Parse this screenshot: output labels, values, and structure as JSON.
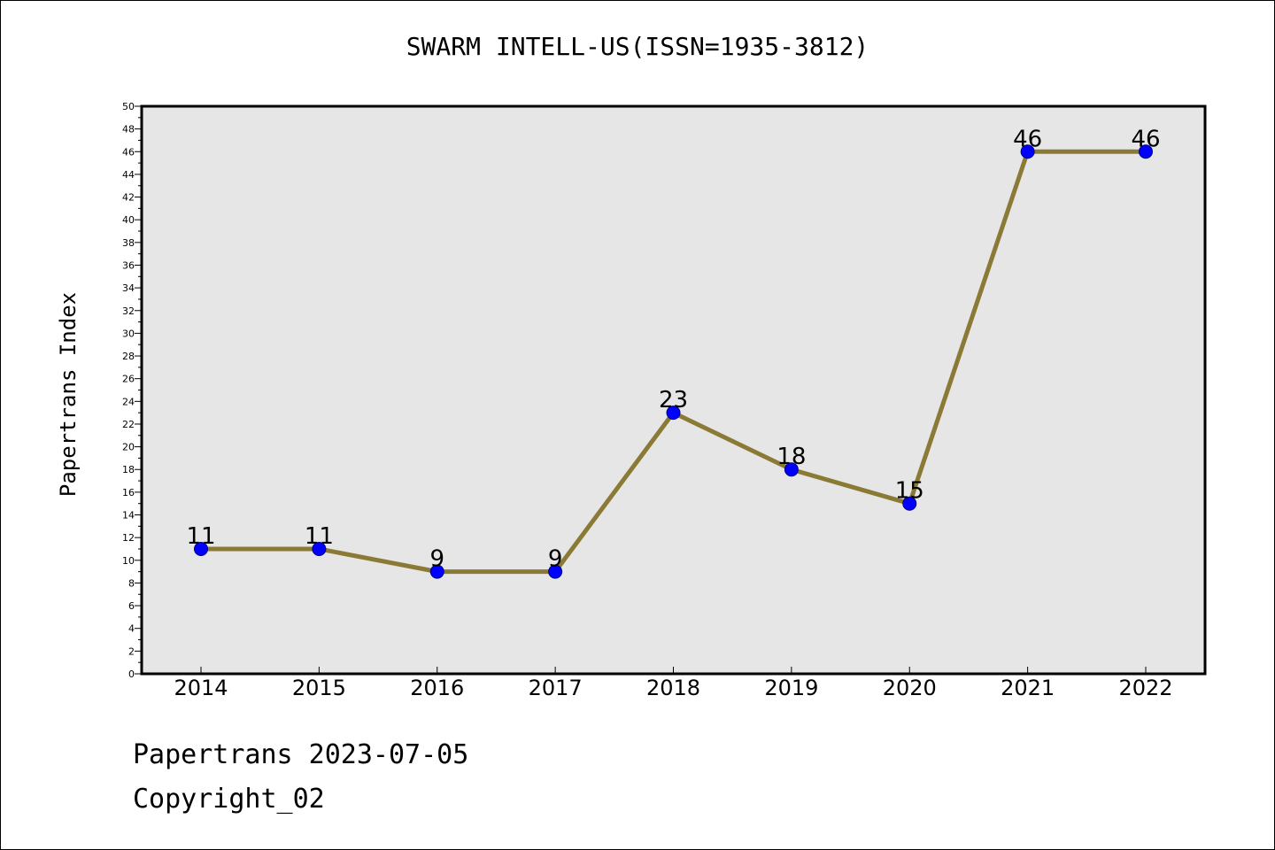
{
  "title": "SWARM INTELL-US(ISSN=1935-3812)",
  "footer": {
    "date_line": "Papertrans 2023-07-05",
    "copyright_line": "Copyright_02"
  },
  "colors": {
    "plot_background": "#e6e6e6",
    "line": "#8b7a35",
    "marker_fill": "#0000ff",
    "marker_edge": "#000080"
  },
  "chart_data": {
    "type": "line",
    "title": "SWARM INTELL-US(ISSN=1935-3812)",
    "xlabel": "",
    "ylabel": "Papertrans Index",
    "x": [
      "2014",
      "2015",
      "2016",
      "2017",
      "2018",
      "2019",
      "2020",
      "2021",
      "2022"
    ],
    "series": [
      {
        "values": [
          11,
          11,
          9,
          9,
          23,
          18,
          15,
          46,
          46
        ]
      }
    ],
    "ylim": [
      0,
      50
    ],
    "y_ticks": [
      "0",
      "2",
      "4",
      "6",
      "8",
      "10",
      "12",
      "14",
      "16",
      "18",
      "20",
      "22",
      "24",
      "26",
      "28",
      "30",
      "32",
      "34",
      "36",
      "38",
      "40",
      "42",
      "44",
      "46",
      "48",
      "50"
    ],
    "grid": false,
    "legend": "none",
    "data_labels": [
      "11",
      "11",
      "9",
      "9",
      "23",
      "18",
      "15",
      "46",
      "46"
    ]
  }
}
